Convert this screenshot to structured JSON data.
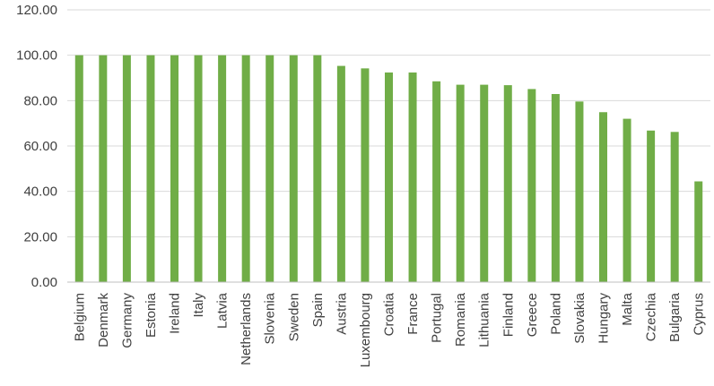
{
  "chart_data": {
    "type": "bar",
    "categories": [
      "Belgium",
      "Denmark",
      "Germany",
      "Estonia",
      "Ireland",
      "Italy",
      "Latvia",
      "Netherlands",
      "Slovenia",
      "Sweden",
      "Spain",
      "Austria",
      "Luxembourg",
      "Croatia",
      "France",
      "Portugal",
      "Romania",
      "Lithuania",
      "Finland",
      "Greece",
      "Poland",
      "Slovakia",
      "Hungary",
      "Malta",
      "Czechia",
      "Bulgaria",
      "Cyprus"
    ],
    "values": [
      100,
      100,
      100,
      100,
      100,
      100,
      100,
      100,
      100,
      100,
      100,
      95.3,
      94.2,
      92.4,
      92.4,
      88.5,
      87.0,
      87.0,
      86.8,
      85.1,
      82.9,
      79.6,
      74.9,
      72.0,
      66.8,
      66.2,
      44.4
    ],
    "ylim": [
      0,
      120
    ],
    "yticks": [
      0,
      20,
      40,
      60,
      80,
      100,
      120
    ],
    "ytick_labels": [
      "0.00",
      "20.00",
      "40.00",
      "60.00",
      "80.00",
      "100.00",
      "120.00"
    ],
    "grid": true,
    "bar_color": "#70ad47"
  }
}
